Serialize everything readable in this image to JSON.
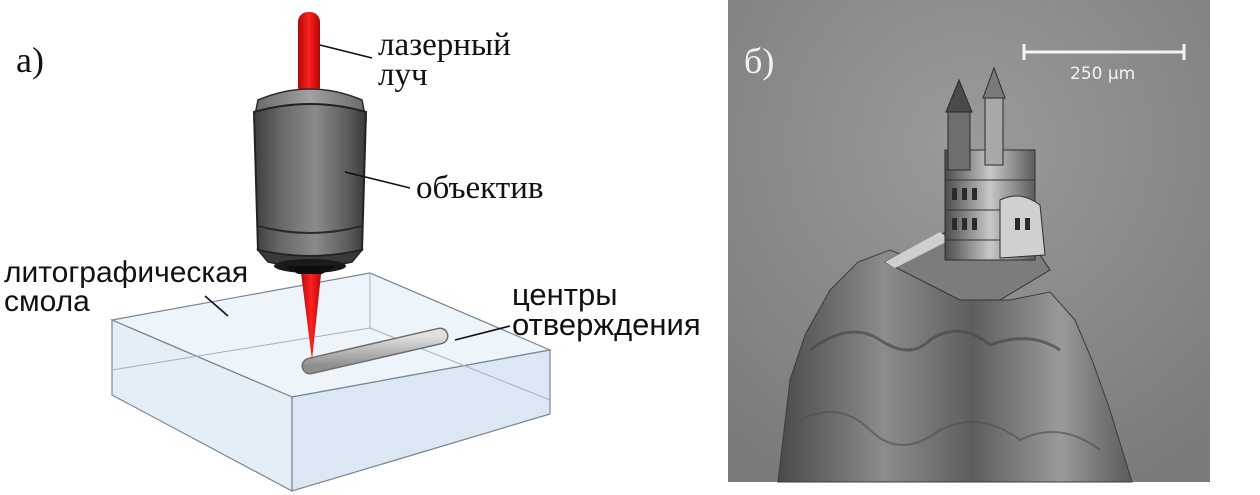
{
  "panel_a": {
    "label": "а)",
    "laser_beam": [
      "лазерный",
      "луч"
    ],
    "objective": "объектив",
    "resin": [
      "литографическая",
      "смола"
    ],
    "curing_centers": [
      "центры",
      "отверждения"
    ]
  },
  "panel_b": {
    "label": "б)",
    "scale_bar": "250 μm"
  },
  "colors": {
    "laser": "#e01010",
    "objective_body": "#707070",
    "resin_block": "#e8f0f8",
    "sem_background": "#8a8a8a"
  }
}
